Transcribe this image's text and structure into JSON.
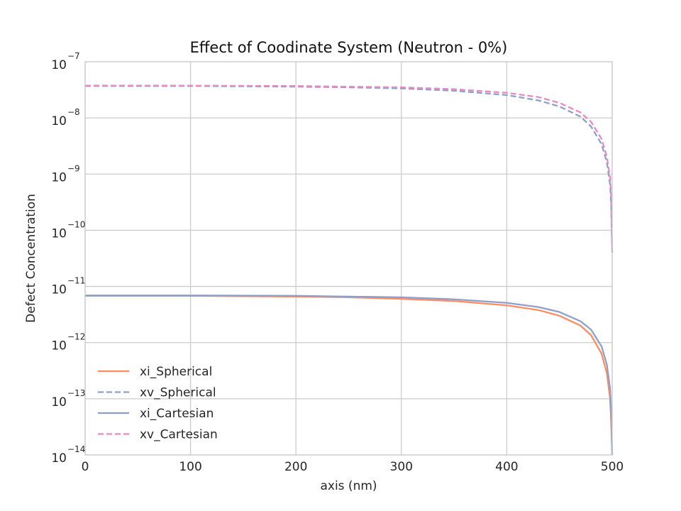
{
  "chart_data": {
    "type": "line",
    "title": "Effect of Coodinate System (Neutron - 0%)",
    "xlabel": "axis (nm)",
    "ylabel": "Defect Concentration",
    "xlim": [
      0,
      500
    ],
    "ylim": [
      1e-14,
      1e-07
    ],
    "yscale": "log",
    "grid": true,
    "legend_position": "lower-left",
    "x_ticks": [
      {
        "value": 0,
        "label": "0"
      },
      {
        "value": 100,
        "label": "100"
      },
      {
        "value": 200,
        "label": "200"
      },
      {
        "value": 300,
        "label": "300"
      },
      {
        "value": 400,
        "label": "400"
      },
      {
        "value": 500,
        "label": "500"
      }
    ],
    "y_ticks": [
      {
        "value": 1e-14,
        "base": "10",
        "exp": "−14"
      },
      {
        "value": 1e-13,
        "base": "10",
        "exp": "−13"
      },
      {
        "value": 1e-12,
        "base": "10",
        "exp": "−12"
      },
      {
        "value": 1e-11,
        "base": "10",
        "exp": "−11"
      },
      {
        "value": 1e-10,
        "base": "10",
        "exp": "−10"
      },
      {
        "value": 1e-09,
        "base": "10",
        "exp": "−9"
      },
      {
        "value": 1e-08,
        "base": "10",
        "exp": "−8"
      },
      {
        "value": 1e-07,
        "base": "10",
        "exp": "−7"
      }
    ],
    "series": [
      {
        "name": "xi_Spherical",
        "color": "#fc8d62",
        "dash": "solid",
        "x": [
          0,
          100,
          200,
          250,
          300,
          350,
          400,
          430,
          450,
          470,
          480,
          490,
          495,
          498,
          499,
          500
        ],
        "y": [
          6.8e-12,
          6.8e-12,
          6.6e-12,
          6.4e-12,
          6e-12,
          5.5e-12,
          4.6e-12,
          3.8e-12,
          3e-12,
          2e-12,
          1.35e-12,
          6.3e-13,
          2.8e-13,
          1e-13,
          4e-14,
          1e-14
        ]
      },
      {
        "name": "xv_Spherical",
        "color": "#8da0cb",
        "dash": "dashed",
        "x": [
          0,
          100,
          200,
          250,
          300,
          350,
          400,
          430,
          450,
          470,
          480,
          490,
          495,
          498,
          499,
          500
        ],
        "y": [
          3.7e-08,
          3.7e-08,
          3.6e-08,
          3.5e-08,
          3.35e-08,
          3.05e-08,
          2.55e-08,
          2.05e-08,
          1.6e-08,
          1.05e-08,
          7e-09,
          3.4e-09,
          1.6e-09,
          6.5e-10,
          3e-10,
          4e-11
        ]
      },
      {
        "name": "xi_Cartesian",
        "color": "#8da0cb",
        "dash": "solid",
        "x": [
          0,
          100,
          200,
          250,
          300,
          350,
          400,
          430,
          450,
          470,
          480,
          490,
          495,
          498,
          499,
          500
        ],
        "y": [
          6.9e-12,
          6.9e-12,
          6.8e-12,
          6.6e-12,
          6.4e-12,
          5.9e-12,
          5.1e-12,
          4.3e-12,
          3.5e-12,
          2.4e-12,
          1.7e-12,
          8.5e-13,
          4e-13,
          1.5e-13,
          6e-14,
          1e-14
        ]
      },
      {
        "name": "xv_Cartesian",
        "color": "#e78ac3",
        "dash": "dashed",
        "x": [
          0,
          100,
          200,
          250,
          300,
          350,
          400,
          430,
          450,
          470,
          480,
          490,
          495,
          498,
          499,
          500
        ],
        "y": [
          3.75e-08,
          3.75e-08,
          3.7e-08,
          3.6e-08,
          3.5e-08,
          3.25e-08,
          2.8e-08,
          2.35e-08,
          1.85e-08,
          1.25e-08,
          8.5e-09,
          4.2e-09,
          2e-09,
          8.5e-10,
          4e-10,
          4e-11
        ]
      }
    ]
  }
}
